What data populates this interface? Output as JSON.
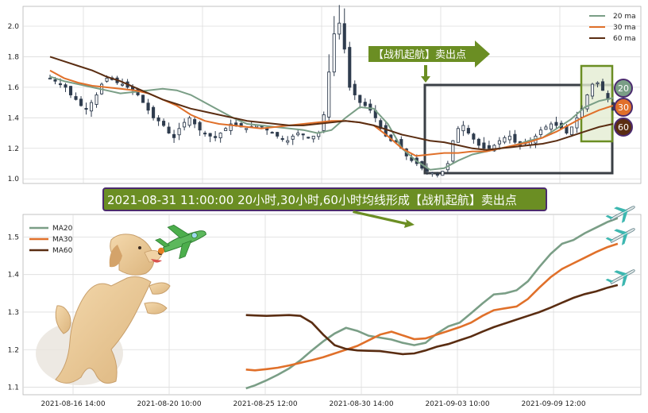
{
  "headline": "2021-08-31 11:00:00 20小时,30小时,60小时均线形成【战机起航】卖出点",
  "signal_label": "【战机起航】卖出点",
  "badges": [
    "20",
    "30",
    "60"
  ],
  "colors": {
    "ma20": "#7a9e86",
    "ma30": "#e0702a",
    "ma60": "#5a2d12",
    "candle": "#2f3c4e",
    "banner": "#6b8e23",
    "banner_border": "#4b2a6e",
    "highlight_box": "#3a3f45",
    "highlight_fill": "#e3ecd2"
  },
  "chart_data": [
    {
      "type": "candlestick",
      "legend": [
        "20 ma",
        "30 ma",
        "60 ma"
      ],
      "legend_position": "top-right",
      "ylim": [
        0.97,
        2.13
      ],
      "yticks": [
        1.0,
        1.2,
        1.4,
        1.6,
        1.8,
        2.0
      ],
      "grid": true,
      "candles_close_approx": [
        1.66,
        1.64,
        1.62,
        1.6,
        1.55,
        1.52,
        1.48,
        1.46,
        1.5,
        1.55,
        1.62,
        1.66,
        1.65,
        1.63,
        1.62,
        1.6,
        1.58,
        1.55,
        1.5,
        1.45,
        1.4,
        1.38,
        1.35,
        1.3,
        1.27,
        1.33,
        1.37,
        1.4,
        1.36,
        1.32,
        1.3,
        1.28,
        1.27,
        1.3,
        1.33,
        1.36,
        1.35,
        1.34,
        1.33,
        1.34,
        1.35,
        1.34,
        1.32,
        1.3,
        1.28,
        1.26,
        1.25,
        1.28,
        1.3,
        1.29,
        1.27,
        1.28,
        1.3,
        1.42,
        1.7,
        1.95,
        2.02,
        1.85,
        1.6,
        1.55,
        1.5,
        1.48,
        1.45,
        1.4,
        1.33,
        1.28,
        1.25,
        1.24,
        1.2,
        1.15,
        1.12,
        1.1,
        1.07,
        1.05,
        1.04,
        1.03,
        1.05,
        1.1,
        1.25,
        1.33,
        1.35,
        1.3,
        1.26,
        1.22,
        1.2,
        1.2,
        1.22,
        1.25,
        1.27,
        1.28,
        1.24,
        1.22,
        1.23,
        1.25,
        1.28,
        1.32,
        1.34,
        1.36,
        1.35,
        1.33,
        1.3,
        1.34,
        1.4,
        1.46,
        1.55,
        1.62,
        1.63,
        1.58,
        1.52,
        1.45
      ],
      "series": [
        {
          "name": "20 ma",
          "values": [
            1.67,
            1.64,
            1.62,
            1.6,
            1.58,
            1.56,
            1.57,
            1.58,
            1.59,
            1.58,
            1.55,
            1.5,
            1.45,
            1.4,
            1.36,
            1.35,
            1.34,
            1.33,
            1.32,
            1.3,
            1.32,
            1.4,
            1.47,
            1.46,
            1.36,
            1.2,
            1.12,
            1.06,
            1.07,
            1.12,
            1.16,
            1.18,
            1.2,
            1.22,
            1.25,
            1.27,
            1.33,
            1.39,
            1.47,
            1.51,
            1.53
          ]
        },
        {
          "name": "30 ma",
          "values": [
            1.71,
            1.66,
            1.63,
            1.61,
            1.6,
            1.59,
            1.58,
            1.56,
            1.52,
            1.48,
            1.42,
            1.38,
            1.36,
            1.35,
            1.34,
            1.33,
            1.34,
            1.35,
            1.36,
            1.37,
            1.38,
            1.38,
            1.37,
            1.35,
            1.28,
            1.2,
            1.15,
            1.16,
            1.17,
            1.17,
            1.18,
            1.18,
            1.2,
            1.22,
            1.24,
            1.27,
            1.31,
            1.36,
            1.41,
            1.45,
            1.48
          ]
        },
        {
          "name": "60 ma",
          "values": [
            1.8,
            1.77,
            1.74,
            1.71,
            1.67,
            1.64,
            1.6,
            1.56,
            1.52,
            1.49,
            1.46,
            1.44,
            1.42,
            1.4,
            1.38,
            1.37,
            1.36,
            1.35,
            1.35,
            1.36,
            1.37,
            1.38,
            1.37,
            1.35,
            1.32,
            1.29,
            1.27,
            1.25,
            1.24,
            1.22,
            1.2,
            1.19,
            1.2,
            1.21,
            1.22,
            1.23,
            1.25,
            1.28,
            1.31,
            1.34,
            1.36
          ]
        }
      ]
    },
    {
      "type": "line",
      "legend": [
        "MA20",
        "MA30",
        "MA60"
      ],
      "legend_position": "top-left",
      "ylim": [
        1.08,
        1.56
      ],
      "yticks": [
        1.1,
        1.2,
        1.3,
        1.4,
        1.5
      ],
      "grid": true,
      "x_ticks": [
        "2021-08-16 14:00",
        "2021-08-20 10:00",
        "2021-08-25 12:00",
        "2021-08-30 14:00",
        "2021-09-03 10:00",
        "2021-09-09 12:00"
      ],
      "x_range": [
        0,
        100
      ],
      "x_tick_positions": [
        0,
        16.9,
        33.8,
        50.7,
        67.6,
        84.5
      ],
      "series": [
        {
          "name": "MA20",
          "x": [
            30.4,
            32,
            34,
            36,
            38,
            40,
            42,
            44,
            46,
            48,
            50,
            52,
            54,
            56,
            58,
            60,
            62,
            64,
            66,
            68,
            70,
            72,
            74,
            76,
            78,
            80,
            82,
            84,
            86,
            88,
            90,
            92,
            94,
            95.8
          ],
          "values": [
            1.097,
            1.105,
            1.118,
            1.133,
            1.15,
            1.172,
            1.198,
            1.222,
            1.243,
            1.258,
            1.25,
            1.237,
            1.232,
            1.227,
            1.218,
            1.212,
            1.218,
            1.243,
            1.262,
            1.272,
            1.297,
            1.323,
            1.347,
            1.35,
            1.358,
            1.382,
            1.42,
            1.455,
            1.482,
            1.492,
            1.51,
            1.525,
            1.54,
            1.55
          ]
        },
        {
          "name": "MA30",
          "x": [
            30.4,
            32,
            34,
            36,
            38,
            40,
            42,
            44,
            46,
            48,
            50,
            52,
            54,
            56,
            58,
            60,
            62,
            64,
            66,
            68,
            70,
            72,
            74,
            76,
            78,
            80,
            82,
            84,
            86,
            88,
            90,
            92,
            94,
            95.8
          ],
          "values": [
            1.147,
            1.145,
            1.148,
            1.152,
            1.158,
            1.165,
            1.172,
            1.18,
            1.19,
            1.2,
            1.21,
            1.225,
            1.24,
            1.248,
            1.238,
            1.228,
            1.23,
            1.24,
            1.25,
            1.26,
            1.272,
            1.29,
            1.305,
            1.31,
            1.315,
            1.335,
            1.365,
            1.393,
            1.415,
            1.43,
            1.445,
            1.46,
            1.473,
            1.482
          ]
        },
        {
          "name": "MA60",
          "x": [
            30.4,
            32,
            34,
            36,
            38,
            40,
            42,
            44,
            46,
            48,
            50,
            52,
            54,
            56,
            58,
            60,
            62,
            64,
            66,
            68,
            70,
            72,
            74,
            76,
            78,
            80,
            82,
            84,
            86,
            88,
            90,
            92,
            94,
            95.8
          ],
          "values": [
            1.292,
            1.291,
            1.29,
            1.291,
            1.292,
            1.29,
            1.272,
            1.24,
            1.212,
            1.202,
            1.198,
            1.197,
            1.196,
            1.192,
            1.188,
            1.19,
            1.198,
            1.208,
            1.215,
            1.225,
            1.235,
            1.248,
            1.26,
            1.27,
            1.28,
            1.29,
            1.3,
            1.312,
            1.325,
            1.338,
            1.348,
            1.355,
            1.365,
            1.372
          ]
        }
      ]
    }
  ]
}
